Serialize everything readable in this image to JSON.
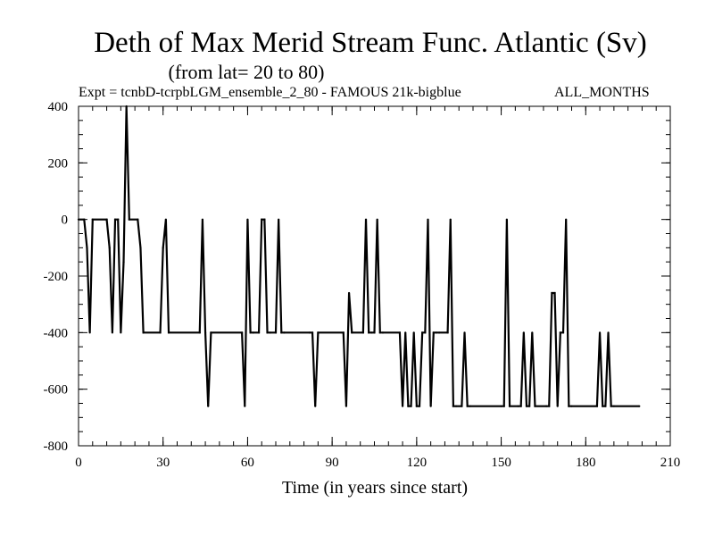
{
  "chart_data": {
    "type": "line",
    "title": "Deth of Max Merid Stream Func. Atlantic (Sv)",
    "subtitle": "(from lat= 20 to 80)",
    "experiment_label": "Expt = tcnbD-tcrpbLGM_ensemble_2_80 - FAMOUS 21k-bigblue",
    "months_label": "ALL_MONTHS",
    "xlabel": "Time (in years since start)",
    "ylabel": "",
    "xlim": [
      0,
      210
    ],
    "ylim": [
      -800,
      400
    ],
    "x_ticks": [
      0,
      30,
      60,
      90,
      120,
      150,
      180,
      210
    ],
    "y_ticks": [
      400,
      200,
      0,
      -200,
      -400,
      -600,
      -800
    ],
    "x_minor_step": 5,
    "y_minor_step": 50,
    "series": [
      {
        "name": "Deth of Max Merid Stream Func.",
        "color": "#000000",
        "x": [
          0,
          2,
          3,
          4,
          5,
          10,
          11,
          12,
          13,
          14,
          15,
          16,
          17,
          18,
          21,
          22,
          23,
          29,
          30,
          31,
          32,
          43,
          44,
          45,
          46,
          47,
          58,
          59,
          60,
          61,
          62,
          64,
          65,
          66,
          67,
          68,
          70,
          71,
          72,
          73,
          82,
          83,
          84,
          85,
          94,
          95,
          96,
          97,
          101,
          102,
          103,
          104,
          105,
          106,
          107,
          108,
          114,
          115,
          116,
          117,
          118,
          119,
          120,
          121,
          122,
          123,
          124,
          125,
          126,
          127,
          128,
          131,
          132,
          133,
          134,
          136,
          137,
          138,
          139,
          150,
          151,
          152,
          153,
          156,
          157,
          158,
          159,
          160,
          161,
          162,
          166,
          167,
          168,
          169,
          170,
          171,
          172,
          173,
          174,
          175,
          184,
          185,
          186,
          187,
          188,
          189,
          190,
          199
        ],
        "values": [
          0,
          0,
          -100,
          -400,
          0,
          0,
          -100,
          -400,
          0,
          0,
          -400,
          -150,
          400,
          0,
          0,
          -100,
          -400,
          -400,
          -100,
          0,
          -400,
          -400,
          0,
          -400,
          -660,
          -400,
          -400,
          -660,
          0,
          -400,
          -400,
          -400,
          0,
          0,
          -400,
          -400,
          -400,
          0,
          -400,
          -400,
          -400,
          -400,
          -660,
          -400,
          -400,
          -660,
          -260,
          -400,
          -400,
          0,
          -400,
          -400,
          -400,
          0,
          -400,
          -400,
          -400,
          -660,
          -400,
          -660,
          -660,
          -400,
          -660,
          -660,
          -400,
          -400,
          0,
          -660,
          -400,
          -400,
          -400,
          -400,
          0,
          -660,
          -660,
          -660,
          -400,
          -660,
          -660,
          -660,
          -660,
          0,
          -660,
          -660,
          -660,
          -400,
          -660,
          -660,
          -400,
          -660,
          -660,
          -660,
          -260,
          -260,
          -660,
          -400,
          -400,
          0,
          -660,
          -660,
          -660,
          -400,
          -660,
          -660,
          -400,
          -660,
          -660,
          -660
        ]
      }
    ]
  }
}
